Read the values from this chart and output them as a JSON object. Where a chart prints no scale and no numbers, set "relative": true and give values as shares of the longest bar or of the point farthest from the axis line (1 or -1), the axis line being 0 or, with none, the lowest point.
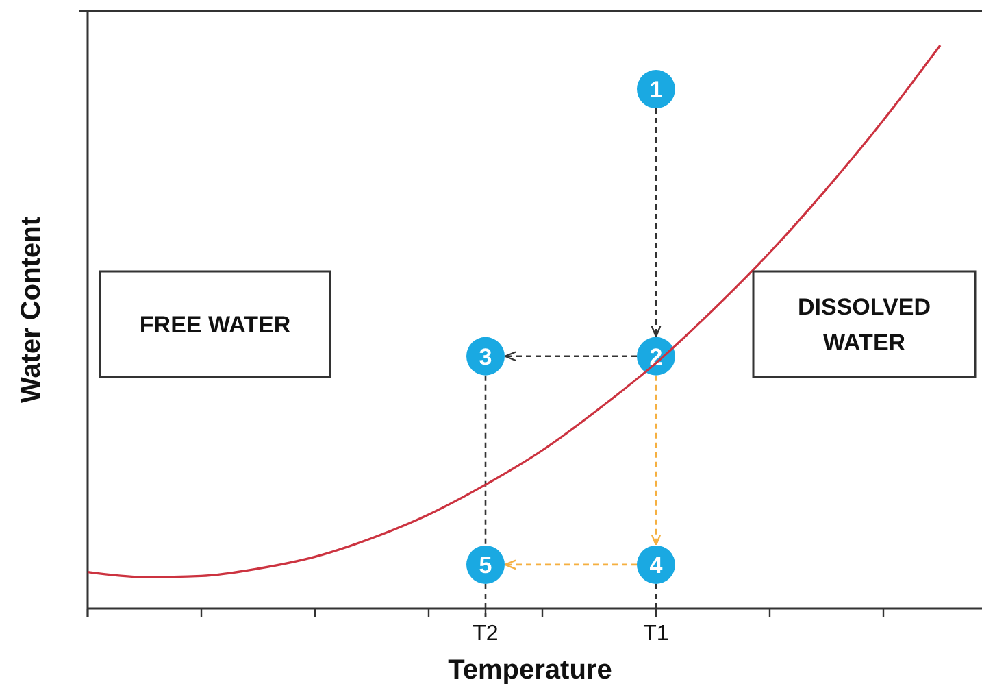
{
  "chart_data": {
    "type": "line",
    "relative": true,
    "xlabel": "Temperature",
    "ylabel": "Water Content",
    "categories": [
      null,
      null,
      null,
      null,
      null,
      null,
      null,
      "T2",
      null,
      null,
      "T1",
      null,
      null,
      null,
      null,
      null
    ],
    "series": [
      {
        "color": "#cc3340",
        "values": [
          0.065,
          0.056,
          0.058,
          0.071,
          0.092,
          0.125,
          0.167,
          0.22,
          0.281,
          0.355,
          0.436,
          0.53,
          0.632,
          0.745,
          0.867,
          1
        ]
      }
    ],
    "marker": "none",
    "line_style": "solid",
    "annotations": [
      "FREE WATER",
      "DISSOLVED\nWATER",
      {
        "text": "1",
        "x": "T1",
        "y": 0.922
      },
      {
        "text": "2",
        "x": "T1",
        "y": 0.448
      },
      {
        "text": "3",
        "x": "T2",
        "y": 0.448
      },
      {
        "text": "4",
        "x": "T1",
        "y": 0.078
      },
      {
        "text": "5",
        "x": "T2",
        "y": 0.078
      }
    ]
  }
}
